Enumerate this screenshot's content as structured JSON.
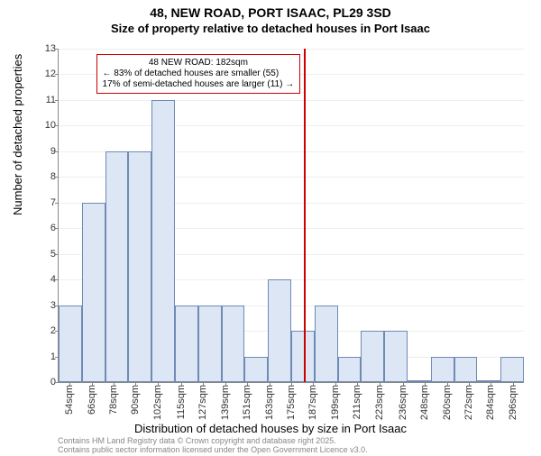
{
  "title_main": "48, NEW ROAD, PORT ISAAC, PL29 3SD",
  "title_sub": "Size of property relative to detached houses in Port Isaac",
  "ylabel": "Number of detached properties",
  "xlabel": "Distribution of detached houses by size in Port Isaac",
  "footer1": "Contains HM Land Registry data © Crown copyright and database right 2025.",
  "footer2": "Contains public sector information licensed under the Open Government Licence v3.0.",
  "chart": {
    "type": "histogram",
    "ylim": [
      0,
      13
    ],
    "yticks": [
      0,
      1,
      2,
      3,
      4,
      5,
      6,
      7,
      8,
      9,
      10,
      11,
      12,
      13
    ],
    "xlim": [
      48,
      302
    ],
    "xticks": [
      54,
      66,
      78,
      90,
      102,
      115,
      127,
      139,
      151,
      163,
      175,
      187,
      199,
      211,
      223,
      236,
      248,
      260,
      272,
      284,
      296
    ],
    "xtick_suffix": "sqm",
    "bar_fill": "#dce6f4",
    "bar_stroke": "#6f8bb5",
    "bg": "#ffffff",
    "grid_color": "#eeeeee",
    "bars": [
      {
        "x0": 48,
        "x1": 60.7,
        "y": 3
      },
      {
        "x0": 60.7,
        "x1": 73.4,
        "y": 7
      },
      {
        "x0": 73.4,
        "x1": 86.1,
        "y": 9
      },
      {
        "x0": 86.1,
        "x1": 98.8,
        "y": 9
      },
      {
        "x0": 98.8,
        "x1": 111.5,
        "y": 11
      },
      {
        "x0": 111.5,
        "x1": 124.2,
        "y": 3
      },
      {
        "x0": 124.2,
        "x1": 136.9,
        "y": 3
      },
      {
        "x0": 136.9,
        "x1": 149.6,
        "y": 3
      },
      {
        "x0": 149.6,
        "x1": 162.3,
        "y": 1
      },
      {
        "x0": 162.3,
        "x1": 175.0,
        "y": 4
      },
      {
        "x0": 175.0,
        "x1": 187.7,
        "y": 2
      },
      {
        "x0": 187.7,
        "x1": 200.4,
        "y": 3
      },
      {
        "x0": 200.4,
        "x1": 213.1,
        "y": 1
      },
      {
        "x0": 213.1,
        "x1": 225.8,
        "y": 2
      },
      {
        "x0": 225.8,
        "x1": 238.5,
        "y": 2
      },
      {
        "x0": 238.5,
        "x1": 251.2,
        "y": 0
      },
      {
        "x0": 251.2,
        "x1": 263.9,
        "y": 1
      },
      {
        "x0": 263.9,
        "x1": 276.6,
        "y": 1
      },
      {
        "x0": 276.6,
        "x1": 289.3,
        "y": 0
      },
      {
        "x0": 289.3,
        "x1": 302.0,
        "y": 1
      }
    ]
  },
  "callout": {
    "x": 182,
    "line_color": "#cc0000",
    "box_border": "#cc0000",
    "header": "48 NEW ROAD: 182sqm",
    "row1_left": "← 83% of detached houses are smaller (55)",
    "row2_left": "17% of semi-detached houses are larger (11) →"
  }
}
